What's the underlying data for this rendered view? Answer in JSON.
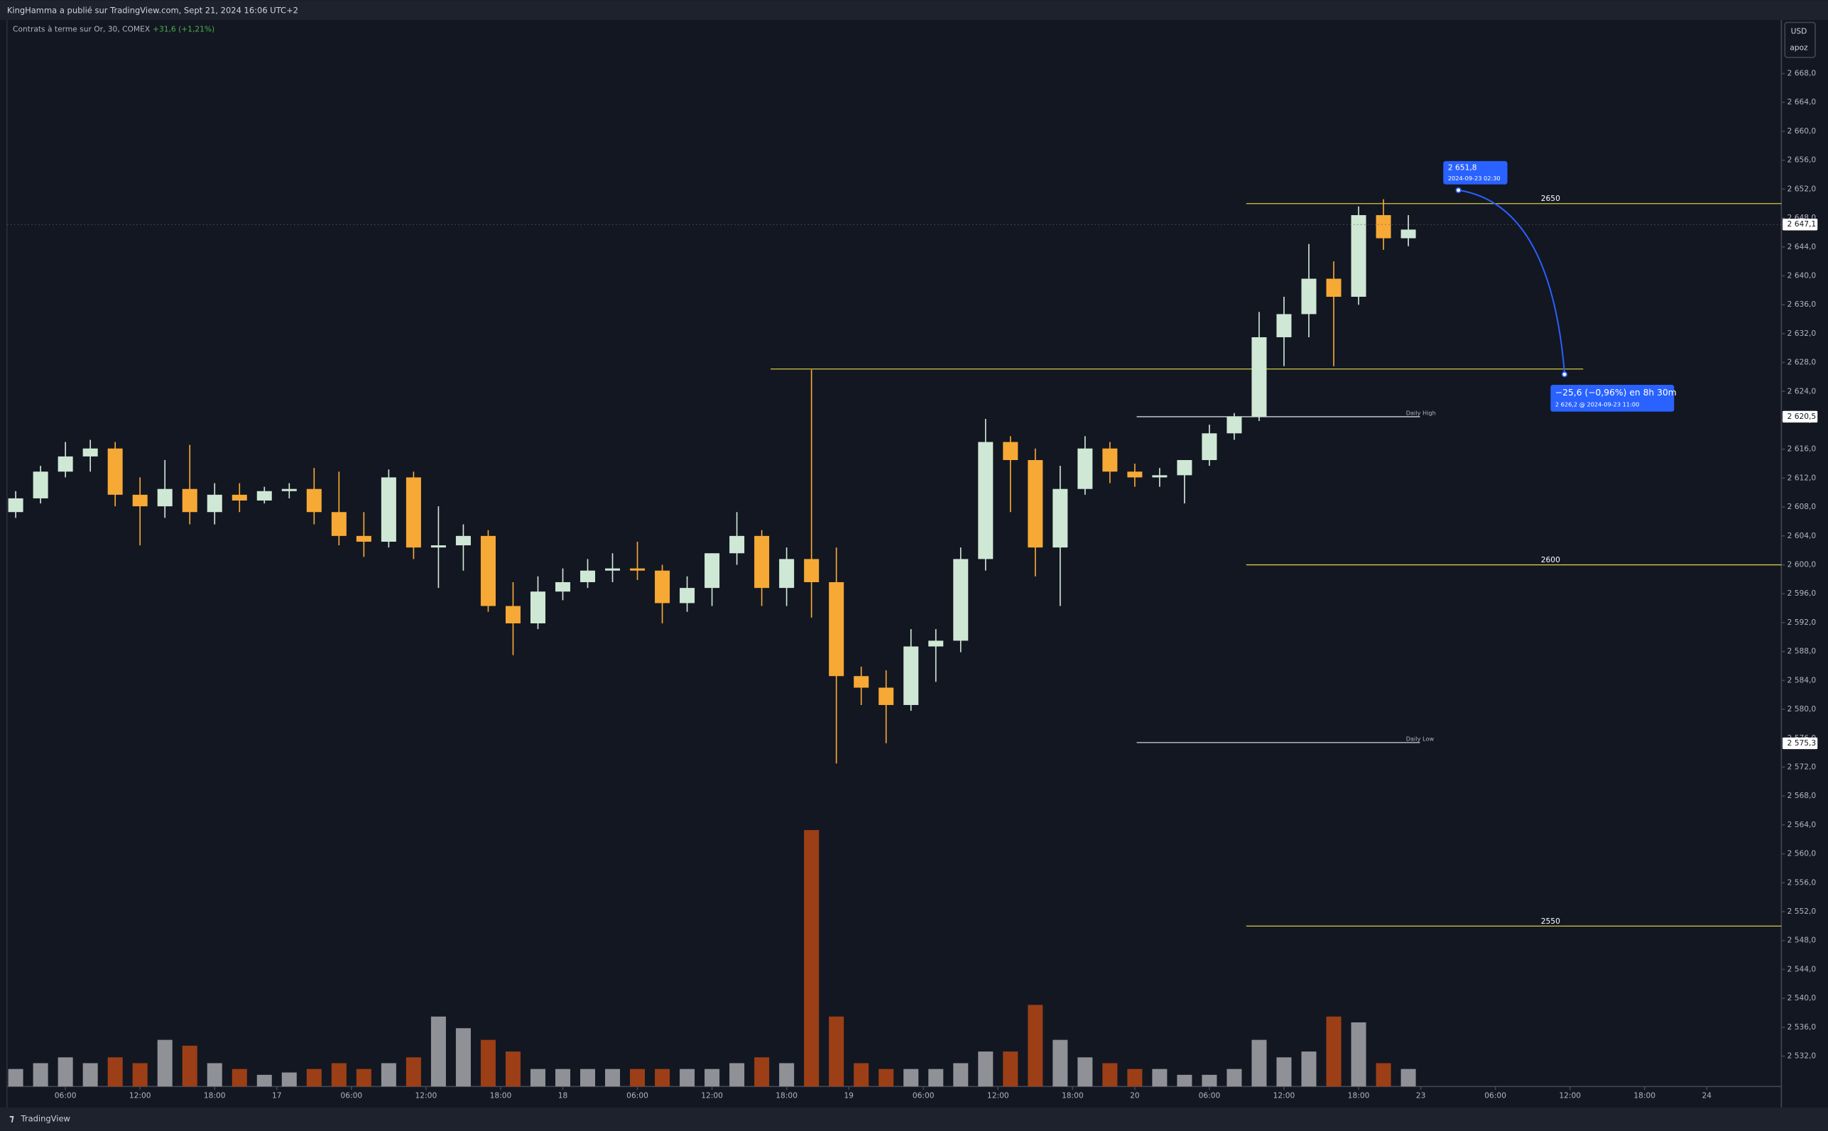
{
  "chart_data": {
    "type": "candlestick",
    "header": "KingHamma a publié sur TradingView.com, Sept 21, 2024 16:06 UTC+2",
    "symbol": "Contrats à terme sur Or, 30, COMEX",
    "change": "+31,6 (+1,21%)",
    "currency": "USD",
    "scale_mode": "apoz",
    "brand": "TradingView",
    "up_color": "#cfe8d5",
    "down_color": "#f7a936",
    "volume_up_color": "#8f9196",
    "volume_down_color": "#9c3f16",
    "grid": false,
    "x": [
      -8,
      -4,
      0,
      4,
      8,
      12,
      16,
      20,
      24,
      28,
      32,
      36,
      40,
      44,
      48,
      52,
      56,
      60,
      64,
      68,
      72,
      76,
      80,
      84,
      88,
      92,
      96,
      100,
      104,
      108,
      112,
      116,
      120,
      124,
      128,
      132,
      136,
      140,
      144,
      148,
      152,
      156,
      160,
      164,
      168,
      172,
      176,
      180,
      184,
      188,
      192,
      196,
      200,
      204,
      208,
      212,
      216
    ],
    "open": [
      2607.3,
      2609.2,
      2612.9,
      2615.0,
      2616.1,
      2609.7,
      2608.1,
      2610.5,
      2607.3,
      2609.7,
      2608.9,
      2610.2,
      2610.5,
      2607.3,
      2604.0,
      2603.2,
      2612.1,
      2602.4,
      2602.7,
      2604.0,
      2594.3,
      2591.9,
      2596.3,
      2597.6,
      2599.2,
      2599.5,
      2599.2,
      2594.7,
      2596.8,
      2601.6,
      2604.0,
      2596.8,
      2600.8,
      2597.6,
      2584.6,
      2583.0,
      2580.6,
      2588.7,
      2589.5,
      2600.8,
      2617.0,
      2614.5,
      2602.4,
      2610.5,
      2616.1,
      2612.9,
      2612.1,
      2612.4,
      2614.5,
      2618.2,
      2620.5,
      2631.5,
      2634.7,
      2639.6,
      2637.1,
      2648.4,
      2645.2
    ],
    "high": [
      2610.2,
      2613.7,
      2617.0,
      2617.3,
      2617.0,
      2612.1,
      2614.5,
      2616.6,
      2611.3,
      2611.3,
      2610.8,
      2611.3,
      2613.4,
      2612.9,
      2607.3,
      2613.2,
      2612.9,
      2608.1,
      2605.6,
      2604.8,
      2597.6,
      2598.4,
      2599.5,
      2600.8,
      2601.6,
      2603.2,
      2600.0,
      2598.4,
      2601.6,
      2607.3,
      2604.8,
      2602.4,
      2627.0,
      2602.4,
      2585.9,
      2585.4,
      2591.1,
      2591.1,
      2602.4,
      2620.2,
      2617.8,
      2616.1,
      2613.7,
      2617.8,
      2617.0,
      2614.0,
      2613.4,
      2614.5,
      2619.4,
      2621.0,
      2635.0,
      2637.1,
      2644.4,
      2642.0,
      2649.6,
      2650.6,
      2648.4
    ],
    "low": [
      2606.5,
      2608.5,
      2612.1,
      2612.9,
      2608.1,
      2602.7,
      2606.5,
      2605.6,
      2605.6,
      2607.3,
      2608.5,
      2609.2,
      2605.6,
      2602.7,
      2601.1,
      2602.4,
      2600.8,
      2596.8,
      2599.2,
      2593.5,
      2587.5,
      2591.1,
      2595.1,
      2596.8,
      2597.6,
      2597.9,
      2591.9,
      2593.5,
      2594.3,
      2600.0,
      2594.3,
      2594.3,
      2592.7,
      2572.5,
      2580.6,
      2575.3,
      2579.8,
      2583.8,
      2587.9,
      2599.2,
      2607.3,
      2598.4,
      2594.3,
      2609.7,
      2611.3,
      2610.8,
      2610.8,
      2608.5,
      2613.7,
      2617.3,
      2619.9,
      2627.5,
      2631.5,
      2627.5,
      2636.0,
      2643.6,
      2644.1
    ],
    "close": [
      2609.2,
      2612.9,
      2615.0,
      2616.1,
      2609.7,
      2608.1,
      2610.5,
      2607.3,
      2609.7,
      2608.9,
      2610.2,
      2610.5,
      2607.3,
      2604.0,
      2603.2,
      2612.1,
      2602.4,
      2602.7,
      2604.0,
      2594.3,
      2591.9,
      2596.3,
      2597.6,
      2599.2,
      2599.5,
      2599.2,
      2594.7,
      2596.8,
      2601.6,
      2604.0,
      2596.8,
      2600.8,
      2597.6,
      2584.6,
      2583.0,
      2580.6,
      2588.7,
      2589.5,
      2600.8,
      2617.0,
      2614.5,
      2602.4,
      2610.5,
      2616.1,
      2612.9,
      2612.1,
      2612.4,
      2614.5,
      2618.2,
      2620.5,
      2631.5,
      2634.7,
      2639.6,
      2637.1,
      2648.4,
      2645.2,
      2646.4
    ],
    "volume": [
      15,
      20,
      25,
      20,
      25,
      20,
      40,
      35,
      20,
      15,
      10,
      12,
      15,
      20,
      15,
      20,
      25,
      60,
      50,
      40,
      30,
      15,
      15,
      15,
      15,
      15,
      15,
      15,
      15,
      20,
      25,
      20,
      220,
      60,
      20,
      15,
      15,
      15,
      20,
      30,
      30,
      70,
      40,
      25,
      20,
      15,
      15,
      10,
      10,
      15,
      40,
      25,
      30,
      60,
      55,
      20,
      15
    ],
    "xlim": [
      -9.4,
      276
    ],
    "xticks": [
      {
        "value": 0,
        "label": "06:00"
      },
      {
        "value": 12,
        "label": "12:00"
      },
      {
        "value": 24,
        "label": "18:00"
      },
      {
        "value": 34,
        "label": "17"
      },
      {
        "value": 46,
        "label": "06:00"
      },
      {
        "value": 58,
        "label": "12:00"
      },
      {
        "value": 70,
        "label": "18:00"
      },
      {
        "value": 80,
        "label": "18"
      },
      {
        "value": 92,
        "label": "06:00"
      },
      {
        "value": 104,
        "label": "12:00"
      },
      {
        "value": 116,
        "label": "18:00"
      },
      {
        "value": 126,
        "label": "19"
      },
      {
        "value": 138,
        "label": "06:00"
      },
      {
        "value": 150,
        "label": "12:00"
      },
      {
        "value": 162,
        "label": "18:00"
      },
      {
        "value": 172,
        "label": "20"
      },
      {
        "value": 184,
        "label": "06:00"
      },
      {
        "value": 196,
        "label": "12:00"
      },
      {
        "value": 208,
        "label": "18:00"
      },
      {
        "value": 218,
        "label": "23"
      },
      {
        "value": 230,
        "label": "06:00"
      },
      {
        "value": 242,
        "label": "12:00"
      },
      {
        "value": 254,
        "label": "18:00"
      },
      {
        "value": 264,
        "label": "24"
      }
    ],
    "ylim": [
      2527.8,
      2675.4
    ],
    "yticks": [
      {
        "value": 2532,
        "label": "2 532,0"
      },
      {
        "value": 2536,
        "label": "2 536,0"
      },
      {
        "value": 2540,
        "label": "2 540,0"
      },
      {
        "value": 2544,
        "label": "2 544,0"
      },
      {
        "value": 2548,
        "label": "2 548,0"
      },
      {
        "value": 2552,
        "label": "2 552,0"
      },
      {
        "value": 2556,
        "label": "2 556,0"
      },
      {
        "value": 2560,
        "label": "2 560,0"
      },
      {
        "value": 2564,
        "label": "2 564,0"
      },
      {
        "value": 2568,
        "label": "2 568,0"
      },
      {
        "value": 2572,
        "label": "2 572,0"
      },
      {
        "value": 2576,
        "label": "2 576,0"
      },
      {
        "value": 2580,
        "label": "2 580,0"
      },
      {
        "value": 2584,
        "label": "2 584,0"
      },
      {
        "value": 2588,
        "label": "2 588,0"
      },
      {
        "value": 2592,
        "label": "2 592,0"
      },
      {
        "value": 2596,
        "label": "2 596,0"
      },
      {
        "value": 2600,
        "label": "2 600,0"
      },
      {
        "value": 2604,
        "label": "2 604,0"
      },
      {
        "value": 2608,
        "label": "2 608,0"
      },
      {
        "value": 2612,
        "label": "2 612,0"
      },
      {
        "value": 2616,
        "label": "2 616,0"
      },
      {
        "value": 2620,
        "label": "2 620,0"
      },
      {
        "value": 2624,
        "label": "2 624,0"
      },
      {
        "value": 2628,
        "label": "2 628,0"
      },
      {
        "value": 2632,
        "label": "2 632,0"
      },
      {
        "value": 2636,
        "label": "2 636,0"
      },
      {
        "value": 2640,
        "label": "2 640,0"
      },
      {
        "value": 2644,
        "label": "2 644,0"
      },
      {
        "value": 2648,
        "label": "2 648,0"
      },
      {
        "value": 2652,
        "label": "2 652,0"
      },
      {
        "value": 2656,
        "label": "2 656,0"
      },
      {
        "value": 2660,
        "label": "2 660,0"
      },
      {
        "value": 2664,
        "label": "2 664,0"
      },
      {
        "value": 2668,
        "label": "2 668,0"
      }
    ],
    "levels": [
      {
        "value": 2650,
        "color": "#d4c94a"
      },
      {
        "value": 2600,
        "color": "#d4c94a"
      },
      {
        "value": 2550,
        "color": "#d4c94a"
      },
      {
        "value": 2627.1,
        "color": "#d4c94a"
      },
      {
        "value": 2620.5,
        "label": "Daily High",
        "color": "#d1d4dc"
      },
      {
        "value": 2575.4,
        "label": "Daily Low",
        "color": "#d1d4dc"
      }
    ],
    "price_tags": [
      {
        "value": 2647.1,
        "label": "2 647,1"
      },
      {
        "value": 2620.5,
        "label": "2 620,5"
      },
      {
        "value": 2575.3,
        "label": "2 575,3"
      }
    ],
    "annotations": [
      {
        "title": "2 651,8",
        "subtitle": "2024-09-23 02:30"
      },
      {
        "title": "−25,6 (−0,96%) en 8h 30m",
        "subtitle": "2 626,2 @ 2024-09-23  11:00"
      }
    ]
  }
}
